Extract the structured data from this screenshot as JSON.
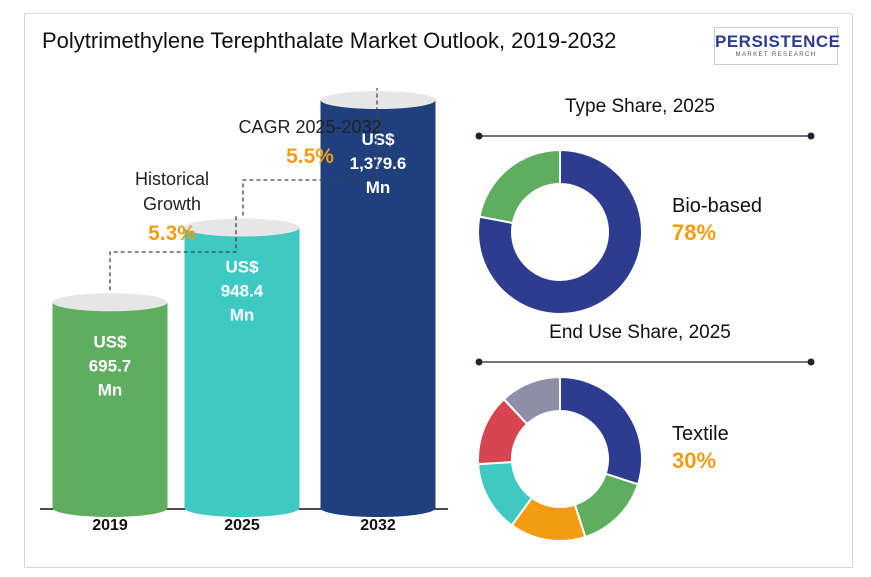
{
  "title": "Polytrimethylene Terephthalate Market Outlook, 2019-2032",
  "logo": {
    "main": "PERSISTENCE",
    "sub": "MARKET RESEARCH"
  },
  "chart_data": [
    {
      "type": "bar",
      "categories": [
        "2019",
        "2025",
        "2032"
      ],
      "values": [
        695.7,
        948.4,
        1379.6
      ],
      "value_labels": [
        [
          "US$",
          "695.7",
          "Mn"
        ],
        [
          "US$",
          "948.4",
          "Mn"
        ],
        [
          "US$",
          "1,379.6",
          "Mn"
        ]
      ],
      "colors": [
        "#5fad5f",
        "#3ec9c3",
        "#1f3f7d"
      ],
      "annotations": [
        {
          "label": [
            "Historical",
            "Growth"
          ],
          "value": "5.3%",
          "from": "2019",
          "to": "2025"
        },
        {
          "label": [
            "CAGR 2025-2032"
          ],
          "value": "5.5%",
          "from": "2025",
          "to": "2032"
        }
      ],
      "accent_color": "#f39c12"
    },
    {
      "type": "pie",
      "donut": true,
      "title": "Type Share, 2025",
      "highlight": {
        "label": "Bio-based",
        "value": "78%"
      },
      "values": [
        78,
        22
      ],
      "colors": [
        "#2e3c8f",
        "#5fad5f"
      ]
    },
    {
      "type": "pie",
      "donut": true,
      "title": "End Use Share, 2025",
      "highlight": {
        "label": "Textile",
        "value": "30%"
      },
      "values": [
        30,
        15,
        15,
        14,
        14,
        12
      ],
      "colors": [
        "#2e3c8f",
        "#5fad5f",
        "#f39c12",
        "#3ec9c3",
        "#d64550",
        "#8e8fa6"
      ]
    }
  ]
}
